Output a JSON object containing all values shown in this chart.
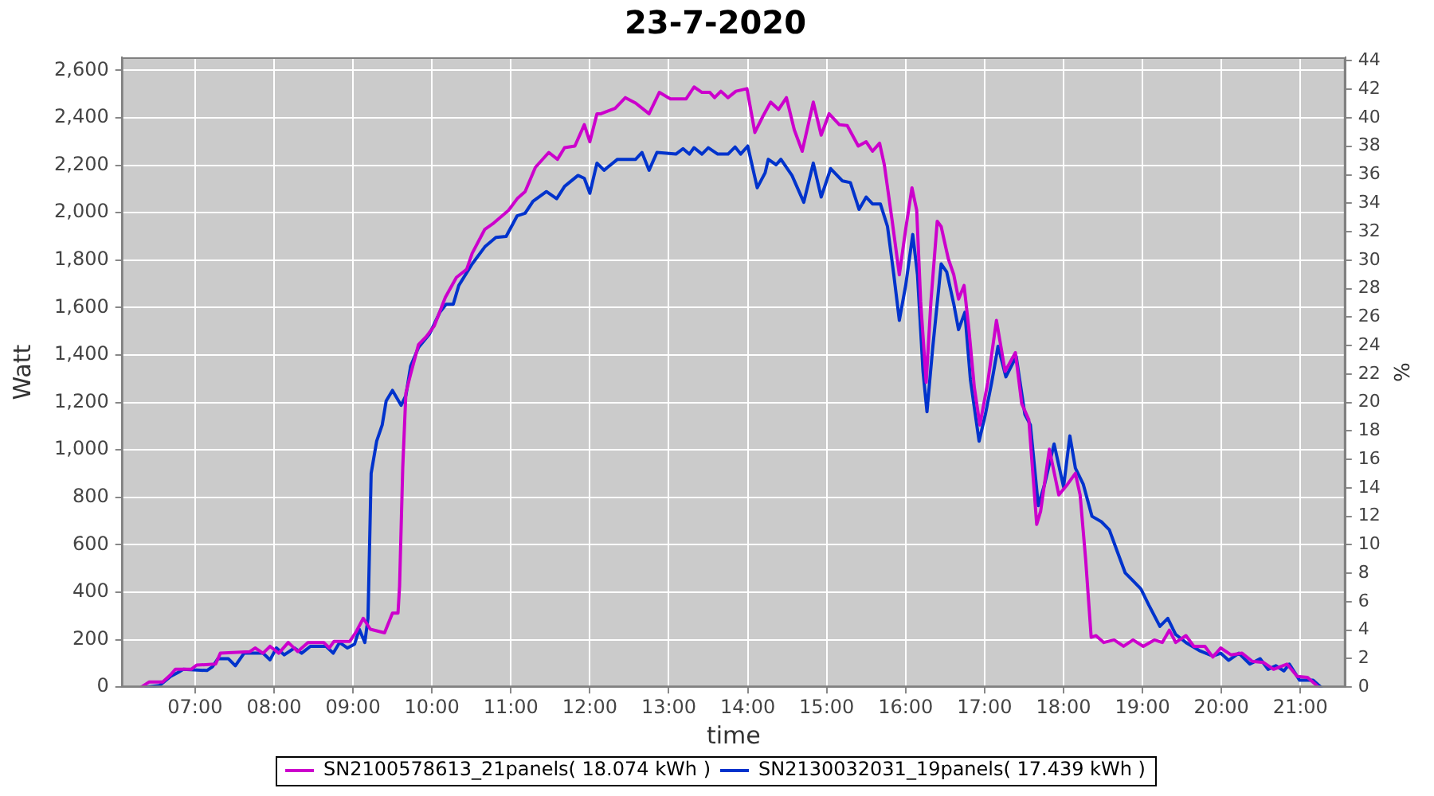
{
  "chart_data": {
    "type": "line",
    "title": "23-7-2020",
    "xlabel": "time",
    "ylabel": "Watt",
    "y2label": "%",
    "xlim": [
      6.07,
      21.57
    ],
    "xticks": [
      {
        "value": 7,
        "label": "07:00"
      },
      {
        "value": 8,
        "label": "08:00"
      },
      {
        "value": 9,
        "label": "09:00"
      },
      {
        "value": 10,
        "label": "10:00"
      },
      {
        "value": 11,
        "label": "11:00"
      },
      {
        "value": 12,
        "label": "12:00"
      },
      {
        "value": 13,
        "label": "13:00"
      },
      {
        "value": 14,
        "label": "14:00"
      },
      {
        "value": 15,
        "label": "15:00"
      },
      {
        "value": 16,
        "label": "16:00"
      },
      {
        "value": 17,
        "label": "17:00"
      },
      {
        "value": 18,
        "label": "18:00"
      },
      {
        "value": 19,
        "label": "19:00"
      },
      {
        "value": 20,
        "label": "20:00"
      },
      {
        "value": 21,
        "label": "21:00"
      }
    ],
    "ylim": [
      0,
      2655
    ],
    "yticks": [
      0,
      200,
      400,
      600,
      800,
      {
        "value": 1000,
        "label": "1,000"
      },
      {
        "value": 1200,
        "label": "1,200"
      },
      {
        "value": 1400,
        "label": "1,400"
      },
      {
        "value": 1600,
        "label": "1,600"
      },
      {
        "value": 1800,
        "label": "1,800"
      },
      {
        "value": 2000,
        "label": "2,000"
      },
      {
        "value": 2200,
        "label": "2,200"
      },
      {
        "value": 2400,
        "label": "2,400"
      },
      {
        "value": 2600,
        "label": "2,600"
      }
    ],
    "y2lim": [
      0,
      44.25
    ],
    "y2ticks": [
      0,
      2,
      4,
      6,
      8,
      10,
      12,
      14,
      16,
      18,
      20,
      22,
      24,
      26,
      28,
      30,
      32,
      34,
      36,
      38,
      40,
      42,
      44
    ],
    "grid": true,
    "legend": "bottom",
    "series": [
      {
        "name": "SN2100578613_21panels( 18.074 kWh )",
        "color": "#cc00cc",
        "x": [
          6.32,
          6.42,
          6.59,
          6.69,
          6.75,
          6.95,
          7.02,
          7.26,
          7.32,
          7.69,
          7.76,
          7.86,
          7.95,
          8.06,
          8.18,
          8.3,
          8.43,
          8.63,
          8.7,
          8.76,
          8.96,
          9.04,
          9.13,
          9.22,
          9.4,
          9.5,
          9.57,
          9.59,
          9.63,
          9.67,
          9.73,
          9.83,
          9.93,
          10.03,
          10.17,
          10.31,
          10.44,
          10.51,
          10.67,
          10.77,
          10.97,
          11.08,
          11.18,
          11.31,
          11.48,
          11.59,
          11.68,
          11.81,
          11.93,
          12.0,
          12.09,
          12.14,
          12.32,
          12.45,
          12.58,
          12.75,
          12.88,
          13.02,
          13.22,
          13.32,
          13.42,
          13.52,
          13.58,
          13.66,
          13.75,
          13.85,
          13.99,
          14.09,
          14.19,
          14.29,
          14.39,
          14.49,
          14.59,
          14.69,
          14.83,
          14.93,
          15.03,
          15.16,
          15.26,
          15.4,
          15.5,
          15.58,
          15.67,
          15.73,
          15.83,
          15.92,
          16.0,
          16.08,
          16.14,
          16.19,
          16.26,
          16.32,
          16.4,
          16.45,
          16.54,
          16.61,
          16.67,
          16.74,
          16.8,
          16.87,
          16.94,
          17.04,
          17.15,
          17.26,
          17.39,
          17.47,
          17.56,
          17.66,
          17.71,
          17.82,
          17.94,
          18.05,
          18.15,
          18.21,
          18.28,
          18.35,
          18.41,
          18.51,
          18.64,
          18.76,
          18.88,
          19.01,
          19.15,
          19.25,
          19.34,
          19.42,
          19.55,
          19.65,
          19.79,
          19.89,
          19.99,
          20.12,
          20.26,
          20.39,
          20.53,
          20.66,
          20.83,
          20.96,
          21.09,
          21.23
        ],
        "values": [
          0,
          22,
          22,
          52,
          75,
          75,
          93,
          97,
          143,
          149,
          165,
          143,
          172,
          143,
          188,
          150,
          188,
          188,
          165,
          193,
          193,
          233,
          290,
          244,
          229,
          312,
          312,
          425,
          923,
          1240,
          1319,
          1444,
          1478,
          1523,
          1643,
          1727,
          1761,
          1829,
          1930,
          1953,
          2010,
          2059,
          2089,
          2191,
          2254,
          2225,
          2274,
          2281,
          2371,
          2299,
          2417,
          2417,
          2440,
          2485,
          2462,
          2417,
          2507,
          2480,
          2480,
          2530,
          2507,
          2507,
          2485,
          2512,
          2485,
          2512,
          2523,
          2338,
          2405,
          2466,
          2435,
          2485,
          2349,
          2259,
          2466,
          2327,
          2417,
          2371,
          2367,
          2281,
          2299,
          2259,
          2293,
          2202,
          1964,
          1738,
          1930,
          2105,
          2010,
          1625,
          1285,
          1625,
          1964,
          1941,
          1806,
          1738,
          1636,
          1693,
          1512,
          1263,
          1105,
          1285,
          1546,
          1331,
          1410,
          1195,
          1127,
          686,
          742,
          1003,
          810,
          855,
          901,
          810,
          538,
          210,
          217,
          188,
          199,
          172,
          199,
          172,
          199,
          188,
          240,
          188,
          217,
          172,
          172,
          127,
          165,
          136,
          143,
          109,
          104,
          75,
          97,
          45,
          41,
          0
        ]
      },
      {
        "name": "SN2130032031_19panels( 17.439 kWh )",
        "color": "#0033cc",
        "x": [
          6.38,
          6.55,
          6.69,
          6.79,
          6.85,
          7.15,
          7.22,
          7.29,
          7.42,
          7.51,
          7.62,
          7.86,
          7.95,
          8.03,
          8.13,
          8.26,
          8.35,
          8.46,
          8.66,
          8.75,
          8.83,
          8.93,
          9.02,
          9.08,
          9.15,
          9.19,
          9.23,
          9.3,
          9.37,
          9.42,
          9.5,
          9.61,
          9.67,
          9.73,
          9.83,
          9.97,
          10.1,
          10.18,
          10.27,
          10.34,
          10.51,
          10.67,
          10.81,
          10.94,
          11.08,
          11.18,
          11.28,
          11.45,
          11.58,
          11.68,
          11.85,
          11.93,
          12.0,
          12.09,
          12.18,
          12.35,
          12.58,
          12.66,
          12.75,
          12.85,
          13.09,
          13.18,
          13.26,
          13.32,
          13.42,
          13.5,
          13.62,
          13.75,
          13.84,
          13.91,
          14.0,
          14.12,
          14.22,
          14.26,
          14.36,
          14.42,
          14.56,
          14.71,
          14.83,
          14.93,
          15.05,
          15.2,
          15.3,
          15.41,
          15.5,
          15.58,
          15.68,
          15.77,
          15.85,
          15.92,
          16.0,
          16.09,
          16.15,
          16.22,
          16.27,
          16.34,
          16.45,
          16.52,
          16.61,
          16.67,
          16.75,
          16.82,
          16.93,
          17.01,
          17.09,
          17.17,
          17.27,
          17.4,
          17.51,
          17.58,
          17.68,
          17.76,
          17.88,
          18.0,
          18.08,
          18.15,
          18.25,
          18.36,
          18.48,
          18.58,
          18.68,
          18.78,
          18.88,
          18.98,
          19.08,
          19.22,
          19.32,
          19.42,
          19.55,
          19.72,
          19.89,
          19.99,
          20.09,
          20.22,
          20.36,
          20.49,
          20.59,
          20.69,
          20.79,
          20.86,
          20.99,
          21.16,
          21.26
        ],
        "values": [
          0,
          7,
          45,
          63,
          75,
          70,
          86,
          120,
          120,
          90,
          143,
          143,
          115,
          165,
          136,
          165,
          143,
          172,
          172,
          143,
          188,
          165,
          181,
          244,
          188,
          290,
          901,
          1037,
          1105,
          1206,
          1251,
          1188,
          1229,
          1353,
          1432,
          1489,
          1580,
          1614,
          1614,
          1693,
          1784,
          1856,
          1896,
          1900,
          1987,
          1998,
          2048,
          2089,
          2059,
          2111,
          2157,
          2145,
          2082,
          2209,
          2179,
          2225,
          2225,
          2254,
          2179,
          2254,
          2247,
          2270,
          2247,
          2274,
          2247,
          2274,
          2247,
          2247,
          2277,
          2247,
          2281,
          2105,
          2168,
          2225,
          2202,
          2225,
          2157,
          2044,
          2209,
          2066,
          2186,
          2134,
          2127,
          2014,
          2066,
          2037,
          2037,
          1942,
          1738,
          1546,
          1693,
          1908,
          1738,
          1331,
          1161,
          1421,
          1784,
          1750,
          1614,
          1507,
          1580,
          1297,
          1037,
          1150,
          1285,
          1437,
          1308,
          1394,
          1150,
          1105,
          765,
          855,
          1025,
          844,
          1059,
          923,
          855,
          720,
          697,
          663,
          572,
          482,
          448,
          414,
          346,
          256,
          290,
          222,
          188,
          154,
          131,
          143,
          113,
          143,
          97,
          120,
          75,
          90,
          68,
          97,
          29,
          29,
          0
        ]
      }
    ]
  }
}
